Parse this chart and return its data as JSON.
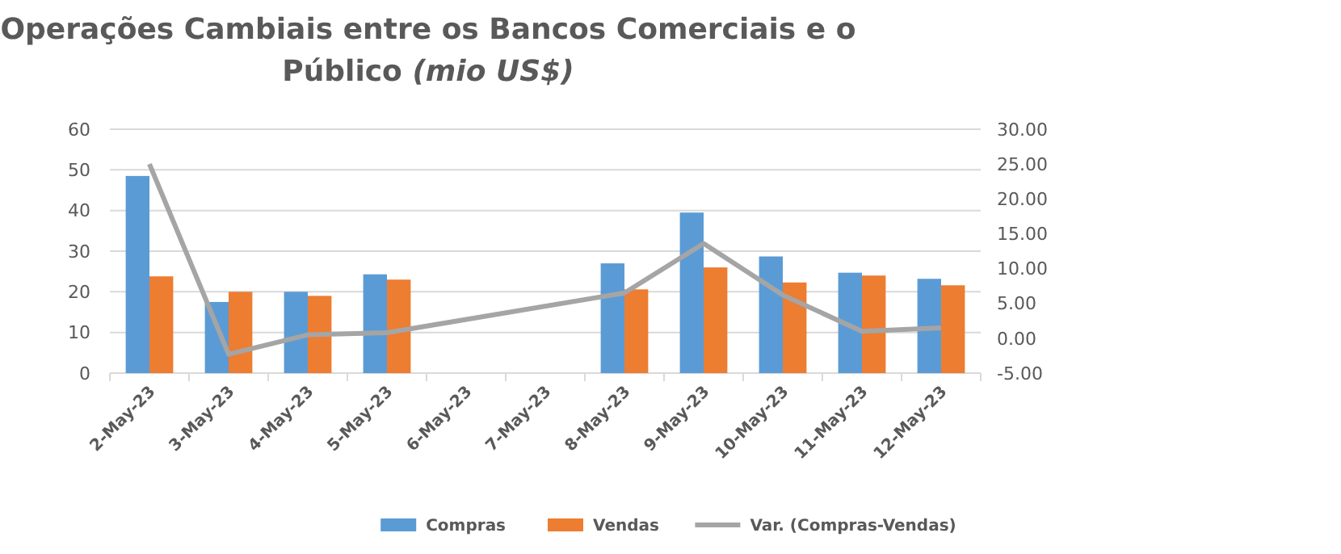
{
  "chart_data": {
    "type": "bar",
    "title": "Operações Cambiais entre os Bancos Comerciais e o Público",
    "subtitle": "(mio US$)",
    "categories": [
      "2-May-23",
      "3-May-23",
      "4-May-23",
      "5-May-23",
      "6-May-23",
      "7-May-23",
      "8-May-23",
      "9-May-23",
      "10-May-23",
      "11-May-23",
      "12-May-23"
    ],
    "series": [
      {
        "name": "Compras",
        "color": "#5b9bd5",
        "values": [
          48.5,
          17.5,
          20,
          24.3,
          null,
          null,
          27,
          39.5,
          28.7,
          24.7,
          23.2
        ]
      },
      {
        "name": "Vendas",
        "color": "#ed7d31",
        "values": [
          23.8,
          20,
          19,
          23,
          null,
          null,
          20.6,
          26,
          22.3,
          24,
          21.6
        ]
      },
      {
        "name": "Var. (Compras-Vendas)",
        "type": "line",
        "axis": "y2",
        "color": "#a5a5a5",
        "values": [
          25,
          -2.3,
          0.5,
          0.8,
          null,
          null,
          6.5,
          13.6,
          6.2,
          1,
          1.5
        ]
      }
    ],
    "ylim": [
      0,
      60
    ],
    "yticks": [
      0,
      10,
      20,
      30,
      40,
      50,
      60
    ],
    "y2lim": [
      -5,
      30
    ],
    "y2ticks": [
      {
        "value": -5,
        "label": "-5.00"
      },
      {
        "value": 0,
        "label": "0.00"
      },
      {
        "value": 5,
        "label": "5.00"
      },
      {
        "value": 10,
        "label": "10.00"
      },
      {
        "value": 15,
        "label": "15.00"
      },
      {
        "value": 20,
        "label": "20.00"
      },
      {
        "value": 25,
        "label": "25.00"
      },
      {
        "value": 30,
        "label": "30.00"
      }
    ],
    "grid": "y",
    "legend": "bottom",
    "marker": "none",
    "line_style": "solid"
  }
}
